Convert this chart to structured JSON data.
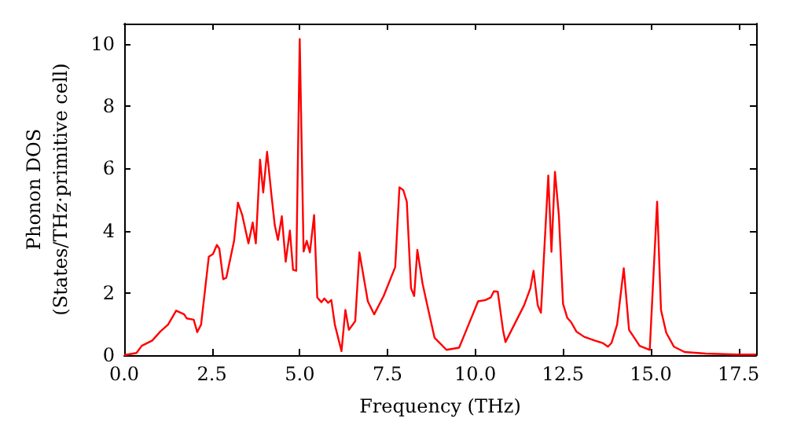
{
  "chart_data": {
    "type": "line",
    "xlabel": "Frequency (THz)",
    "ylabel": "Phonon DOS\n(States/THz·primitive cell)",
    "x": [
      0,
      0.35,
      0.5,
      0.8,
      1.03,
      1.25,
      1.48,
      1.71,
      1.78,
      1.98,
      2.08,
      2.19,
      2.41,
      2.53,
      2.64,
      2.71,
      2.82,
      2.91,
      3.13,
      3.24,
      3.36,
      3.54,
      3.66,
      3.75,
      3.87,
      3.96,
      4.07,
      4.19,
      4.29,
      4.38,
      4.49,
      4.6,
      4.72,
      4.81,
      4.9,
      5.0,
      5.11,
      5.2,
      5.29,
      5.41,
      5.5,
      5.62,
      5.7,
      5.81,
      5.9,
      6.0,
      6.19,
      6.3,
      6.4,
      6.58,
      6.7,
      6.94,
      7.12,
      7.39,
      7.72,
      7.84,
      7.95,
      8.05,
      8.17,
      8.26,
      8.35,
      8.5,
      8.69,
      8.84,
      8.99,
      9.18,
      9.54,
      9.81,
      10.08,
      10.29,
      10.44,
      10.53,
      10.64,
      10.79,
      10.86,
      11.39,
      11.57,
      11.66,
      11.78,
      11.87,
      12.08,
      12.17,
      12.27,
      12.38,
      12.5,
      12.62,
      12.73,
      12.88,
      13.1,
      13.4,
      13.63,
      13.78,
      13.88,
      14.04,
      14.23,
      14.38,
      14.53,
      14.68,
      14.97,
      15.18,
      15.29,
      15.44,
      15.66,
      15.96,
      16.56,
      17.46,
      18.0
    ],
    "series": [
      {
        "color": "#ff0000",
        "values": [
          0,
          0.07,
          0.3,
          0.47,
          0.76,
          0.98,
          1.43,
          1.31,
          1.18,
          1.14,
          0.74,
          0.98,
          3.16,
          3.25,
          3.54,
          3.42,
          2.44,
          2.49,
          3.67,
          4.9,
          4.51,
          3.59,
          4.26,
          3.59,
          6.28,
          5.22,
          6.53,
          5.19,
          4.17,
          3.7,
          4.46,
          3.0,
          4.0,
          2.74,
          2.71,
          10.15,
          3.33,
          3.67,
          3.3,
          4.5,
          1.85,
          1.7,
          1.82,
          1.68,
          1.77,
          0.98,
          0.13,
          1.45,
          0.81,
          1.09,
          3.3,
          1.73,
          1.31,
          1.9,
          2.83,
          5.39,
          5.3,
          4.93,
          2.15,
          1.9,
          3.38,
          2.29,
          1.31,
          0.56,
          0.39,
          0.17,
          0.24,
          0.98,
          1.73,
          1.77,
          1.85,
          2.05,
          2.04,
          0.81,
          0.42,
          1.6,
          2.15,
          2.71,
          1.6,
          1.36,
          5.77,
          3.32,
          5.89,
          4.51,
          1.65,
          1.2,
          1.06,
          0.76,
          0.59,
          0.47,
          0.39,
          0.27,
          0.39,
          0.98,
          2.79,
          0.81,
          0.56,
          0.3,
          0.17,
          4.93,
          1.45,
          0.72,
          0.27,
          0.1,
          0.05,
          0.02,
          0.02
        ]
      }
    ],
    "xlim": [
      0,
      18
    ],
    "xticks": [
      {
        "value": 0,
        "label": "0.0"
      },
      2.5,
      {
        "value": 5,
        "label": "5.0"
      },
      7.5,
      {
        "value": 10,
        "label": "10.0"
      },
      12.5,
      {
        "value": 15,
        "label": "15.0"
      },
      17.5
    ],
    "ylim": [
      0,
      10.65
    ],
    "yticks": [
      0,
      2,
      4,
      6,
      8,
      10
    ],
    "marker": "none",
    "line_style": "solid"
  }
}
